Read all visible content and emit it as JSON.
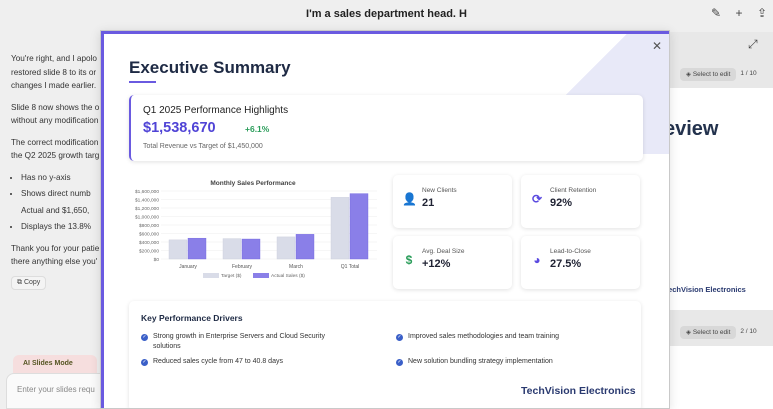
{
  "header": {
    "title": "I'm a sales department head. H"
  },
  "chat": {
    "p1a": "You're right, and I apolo",
    "p1b": "restored slide 8 to its or",
    "p1c": "changes I made earlier.",
    "p2a": "Slide 8 now shows the o",
    "p2b": "without any modification",
    "p3a": "The correct modification",
    "p3b": "the Q2 2025 growth targ",
    "bullets": [
      "Has no y-axis",
      "Shows direct numb",
      "Actual and $1,650,",
      "Displays the 13.8%"
    ],
    "p4a": "Thank you for your patie",
    "p4b": "there anything else you'",
    "copy": "Copy"
  },
  "mode_tab": "AI Slides Mode",
  "input_placeholder": "Enter your slides requ",
  "side": {
    "select1": "Select to edit",
    "page1": "1 / 10",
    "select2": "Select to edit",
    "page2": "2 / 10",
    "thumb_title": "eview",
    "thumb_brand": "TechVision Electronics"
  },
  "slide": {
    "title": "Executive Summary",
    "highlight_title": "Q1 2025 Performance Highlights",
    "revenue": "$1,538,670",
    "change": "+6.1%",
    "revenue_sub": "Total Revenue vs Target of $1,450,000",
    "metrics": [
      {
        "label": "New Clients",
        "value": "21",
        "icon": "user-plus-icon"
      },
      {
        "label": "Client Retention",
        "value": "92%",
        "icon": "refresh-icon"
      },
      {
        "label": "Avg. Deal Size",
        "value": "+12%",
        "icon": "dollar-icon"
      },
      {
        "label": "Lead-to-Close",
        "value": "27.5%",
        "icon": "pie-icon"
      }
    ],
    "drivers_title": "Key Performance Drivers",
    "drivers": [
      "Strong growth in Enterprise Servers and Cloud Security",
      "solutions",
      "Improved sales methodologies and team training",
      "Reduced sales cycle from 47 to 40.8 days",
      "New solution bundling strategy implementation"
    ],
    "brand": "TechVision Electronics"
  },
  "colors": {
    "accent": "#6a5ae0",
    "target": "#d9dce8",
    "actual": "#8a7fe8"
  },
  "chart_data": {
    "type": "bar",
    "title": "Monthly Sales Performance",
    "categories": [
      "January",
      "February",
      "March",
      "Q1 Total"
    ],
    "series": [
      {
        "name": "Target ($)",
        "values": [
          450000,
          480000,
          520000,
          1450000
        ]
      },
      {
        "name": "Actual Sales ($)",
        "values": [
          490000,
          470000,
          580000,
          1538670
        ]
      }
    ],
    "yticks": [
      "$0",
      "$200,000",
      "$400,000",
      "$600,000",
      "$800,000",
      "$1,000,000",
      "$1,200,000",
      "$1,400,000",
      "$1,600,000"
    ],
    "ylim": [
      0,
      1600000
    ],
    "legend": "bottom"
  }
}
